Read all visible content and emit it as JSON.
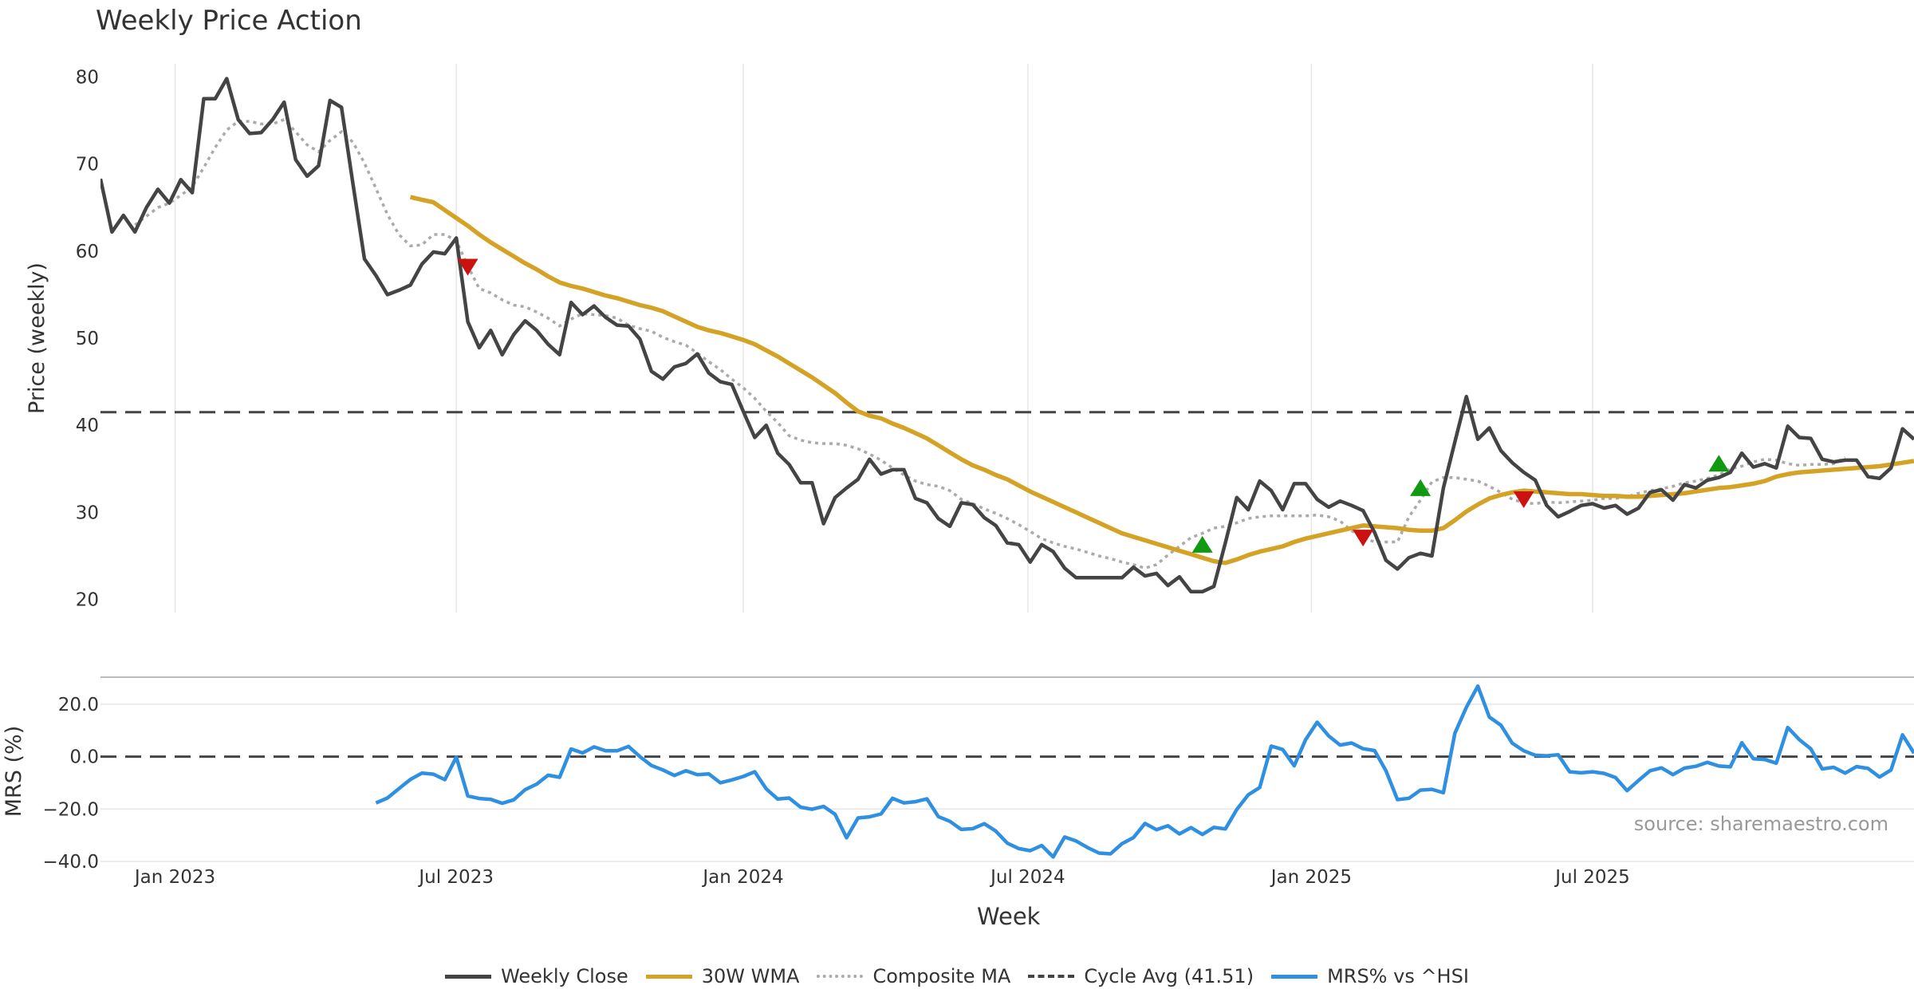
{
  "header": {
    "title": "Weekly Price Action"
  },
  "source": "source: sharemaestro.com",
  "colors": {
    "close": "#444444",
    "wma": "#D4A326",
    "composite": "#AAAAAA",
    "cycle": "#444444",
    "mrs": "#2F8FE0",
    "bull": "#119911",
    "bear": "#CC1111",
    "grid": "#E6E6E6",
    "tick": "#333333"
  },
  "chart_data": {
    "type": "line",
    "xlabel": "Week",
    "x_ticks": [
      "Jan 2023",
      "Jul 2023",
      "Jan 2024",
      "Jul 2024",
      "Jan 2025",
      "Jul 2025"
    ],
    "x_range": [
      0,
      158
    ],
    "x_tick_index": [
      6.5,
      31,
      56,
      80.8,
      105.5,
      130
    ],
    "price_panel": {
      "ylabel": "Price (weekly)",
      "ylim": [
        18.5,
        81.5
      ],
      "yticks": [
        20,
        30,
        40,
        50,
        60,
        70,
        80
      ],
      "cycle_avg": 41.51,
      "series": {
        "close": [
          68.3,
          62.2,
          64.1,
          62.2,
          65.0,
          67.1,
          65.5,
          68.2,
          66.7,
          77.5,
          77.5,
          79.8,
          75.1,
          73.5,
          73.6,
          75.1,
          77.1,
          70.5,
          68.6,
          69.8,
          77.3,
          76.5,
          67.7,
          59.1,
          57.2,
          55.0,
          55.5,
          56.1,
          58.5,
          59.9,
          59.7,
          61.5,
          51.9,
          48.9,
          50.9,
          48.1,
          50.4,
          52.0,
          50.9,
          49.3,
          48.1,
          54.1,
          52.7,
          53.7,
          52.4,
          51.5,
          51.4,
          49.9,
          46.2,
          45.3,
          46.7,
          47.1,
          48.2,
          46.0,
          45.0,
          44.7,
          41.6,
          38.6,
          40.0,
          36.8,
          35.5,
          33.4,
          33.4,
          28.7,
          31.7,
          32.8,
          33.8,
          36.1,
          34.4,
          34.9,
          34.9,
          31.6,
          31.1,
          29.3,
          28.4,
          31.1,
          30.9,
          29.4,
          28.5,
          26.5,
          26.3,
          24.3,
          26.3,
          25.5,
          23.6,
          22.5,
          22.5,
          22.5,
          22.5,
          22.5,
          23.7,
          22.7,
          23.0,
          21.6,
          22.6,
          20.9,
          20.9,
          21.5,
          26.5,
          31.7,
          30.3,
          33.6,
          32.5,
          30.3,
          33.3,
          33.3,
          31.5,
          30.6,
          31.3,
          30.8,
          30.2,
          27.7,
          24.5,
          23.5,
          24.8,
          25.3,
          25.0,
          32.8,
          38.1,
          43.3,
          38.4,
          39.7,
          37.1,
          35.7,
          34.6,
          33.7,
          30.8,
          29.5,
          30.1,
          30.8,
          31.0,
          30.5,
          30.8,
          29.8,
          30.5,
          32.3,
          32.6,
          31.4,
          33.2,
          32.8,
          33.7,
          34.0,
          34.6,
          36.8,
          35.2,
          35.6,
          35.1,
          39.9,
          38.6,
          38.5,
          36.1,
          35.8,
          36.0,
          36.0,
          34.1,
          33.9,
          35.1,
          39.6,
          38.4
        ],
        "wma_start": 27,
        "wma": [
          66.2,
          65.9,
          65.6,
          64.7,
          63.8,
          62.9,
          61.9,
          61.0,
          60.2,
          59.4,
          58.6,
          57.9,
          57.1,
          56.4,
          56.0,
          55.7,
          55.3,
          54.9,
          54.6,
          54.2,
          53.8,
          53.5,
          53.1,
          52.5,
          51.9,
          51.3,
          50.9,
          50.6,
          50.2,
          49.8,
          49.3,
          48.6,
          47.9,
          47.1,
          46.3,
          45.5,
          44.6,
          43.7,
          42.6,
          41.6,
          41.1,
          40.8,
          40.2,
          39.7,
          39.1,
          38.5,
          37.7,
          36.9,
          36.1,
          35.4,
          34.9,
          34.3,
          33.8,
          33.1,
          32.4,
          31.8,
          31.2,
          30.6,
          30.0,
          29.4,
          28.8,
          28.2,
          27.6,
          27.2,
          26.8,
          26.4,
          26.0,
          25.6,
          25.2,
          24.8,
          24.4,
          24.2,
          24.6,
          25.1,
          25.5,
          25.8,
          26.1,
          26.6,
          27.0,
          27.3,
          27.6,
          27.9,
          28.2,
          28.5,
          28.4,
          28.3,
          28.2,
          28.0,
          27.9,
          27.9,
          28.2,
          29.1,
          30.1,
          30.9,
          31.6,
          32.0,
          32.3,
          32.5,
          32.4,
          32.3,
          32.2,
          32.1,
          32.1,
          32.0,
          31.9,
          31.9,
          31.8,
          31.8,
          31.9,
          32.0,
          32.1,
          32.2,
          32.4,
          32.6,
          32.8,
          32.9,
          33.1,
          33.3,
          33.6,
          34.1,
          34.4,
          34.6,
          34.7,
          34.8,
          34.9,
          35.0,
          35.1,
          35.2,
          35.3,
          35.5,
          35.7,
          35.9
        ],
        "composite_start": 3,
        "composite": [
          63.0,
          64.0,
          65.0,
          65.5,
          66.4,
          67.4,
          69.6,
          71.9,
          73.9,
          74.9,
          74.9,
          74.6,
          74.6,
          75.1,
          73.7,
          72.2,
          71.4,
          72.7,
          73.7,
          72.5,
          70.1,
          67.2,
          64.2,
          61.9,
          60.6,
          60.7,
          61.9,
          61.9,
          61.2,
          58.3,
          55.7,
          55.2,
          54.4,
          53.8,
          53.6,
          53.0,
          52.3,
          51.4,
          52.2,
          52.8,
          52.7,
          52.6,
          52.3,
          51.5,
          51.1,
          50.8,
          50.1,
          49.6,
          49.2,
          48.3,
          47.3,
          46.4,
          45.3,
          44.3,
          43.1,
          41.6,
          40.3,
          38.8,
          38.3,
          38.0,
          37.9,
          37.9,
          37.7,
          37.3,
          36.7,
          36.0,
          35.1,
          34.3,
          33.6,
          33.2,
          33.0,
          32.5,
          31.5,
          31.0,
          30.4,
          29.9,
          29.3,
          28.6,
          27.8,
          27.0,
          26.5,
          26.1,
          25.8,
          25.4,
          25.0,
          24.7,
          24.3,
          24.0,
          23.6,
          24.0,
          25.1,
          26.1,
          27.1,
          27.6,
          28.2,
          28.4,
          28.8,
          29.3,
          29.5,
          29.6,
          29.6,
          29.6,
          29.6,
          29.7,
          29.5,
          29.0,
          27.9,
          27.1,
          26.6,
          26.6,
          26.6,
          29.5,
          31.4,
          33.5,
          34.0,
          34.0,
          33.8,
          33.6,
          33.0,
          32.3,
          31.5,
          31.1,
          31.0,
          31.2,
          31.1,
          31.2,
          31.3,
          31.4,
          31.6,
          31.6,
          31.8,
          32.2,
          32.5,
          32.7,
          33.0,
          33.4,
          33.6,
          33.9,
          34.3,
          35.0,
          35.3,
          35.8,
          36.1,
          36.0,
          35.6,
          35.4,
          35.5,
          35.5,
          35.6,
          36.3
        ],
        "bull_signals": [
          [
            96,
            26.3
          ],
          [
            115,
            32.8
          ],
          [
            141,
            35.6
          ]
        ],
        "bear_signals": [
          [
            32,
            58.2
          ],
          [
            110,
            27.1
          ],
          [
            124,
            31.5
          ]
        ]
      }
    },
    "mrs_panel": {
      "ylabel": "MRS (%)",
      "ylim": [
        -40,
        30
      ],
      "yticks": [
        "20.0",
        "0.0",
        "−20.0",
        "−40.0"
      ],
      "ytick_values": [
        20,
        0,
        -20,
        -40
      ],
      "start": 24,
      "values": [
        -17.7,
        -15.8,
        -12.2,
        -8.7,
        -6.3,
        -6.7,
        -8.8,
        -0.2,
        -15.0,
        -16.0,
        -16.3,
        -17.8,
        -16.5,
        -12.6,
        -10.5,
        -7.1,
        -7.9,
        2.9,
        1.4,
        3.7,
        2.2,
        2.2,
        3.9,
        0.0,
        -3.4,
        -5.1,
        -7.2,
        -5.4,
        -6.9,
        -6.6,
        -10.0,
        -8.9,
        -7.6,
        -5.8,
        -12.3,
        -16.2,
        -15.8,
        -19.3,
        -20.1,
        -19.0,
        -22.0,
        -31.0,
        -23.4,
        -23.0,
        -21.9,
        -15.9,
        -17.7,
        -17.2,
        -16.1,
        -22.9,
        -24.7,
        -27.8,
        -27.5,
        -25.6,
        -28.4,
        -33.0,
        -35.1,
        -35.9,
        -33.9,
        -38.3,
        -30.7,
        -32.2,
        -34.7,
        -36.8,
        -37.1,
        -33.2,
        -30.9,
        -25.5,
        -27.9,
        -26.4,
        -29.5,
        -27.1,
        -29.7,
        -27.0,
        -27.6,
        -20.2,
        -14.6,
        -11.8,
        4.0,
        2.7,
        -3.5,
        6.5,
        13.1,
        7.9,
        4.4,
        5.2,
        3.0,
        2.3,
        -5.4,
        -16.4,
        -15.9,
        -12.8,
        -12.5,
        -13.8,
        8.9,
        18.8,
        26.9,
        15.1,
        12.0,
        5.1,
        2.2,
        0.5,
        0.3,
        0.7,
        -5.8,
        -6.2,
        -5.8,
        -6.4,
        -8.0,
        -13.0,
        -9.1,
        -5.4,
        -4.3,
        -6.9,
        -4.4,
        -3.7,
        -2.2,
        -3.6,
        -3.9,
        5.3,
        -0.8,
        -1.1,
        -2.5,
        11.1,
        6.5,
        3.0,
        -4.7,
        -4.1,
        -6.3,
        -3.8,
        -4.5,
        -7.8,
        -5.1,
        8.3,
        1.3
      ]
    },
    "legend": [
      {
        "label": "Weekly Close",
        "style": "solid",
        "color": "#444444"
      },
      {
        "label": "30W WMA",
        "style": "solid",
        "color": "#D4A326"
      },
      {
        "label": "Composite MA",
        "style": "dotted",
        "color": "#AAAAAA"
      },
      {
        "label": "Cycle Avg (41.51)",
        "style": "dashed",
        "color": "#444444"
      },
      {
        "label": "MRS% vs ^HSI",
        "style": "solid",
        "color": "#2F8FE0"
      }
    ]
  }
}
